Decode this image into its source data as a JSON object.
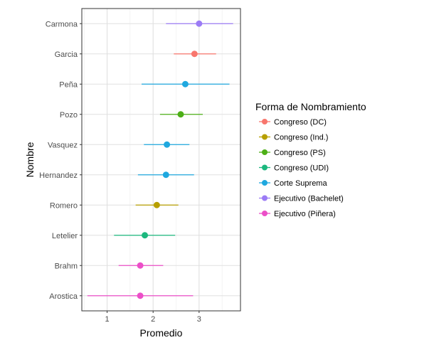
{
  "chart_data": {
    "type": "scatter",
    "title": "",
    "xlabel": "Promedio",
    "ylabel": "Nombre",
    "xlim": [
      0.45,
      3.9
    ],
    "xticks": [
      1,
      2,
      3
    ],
    "grid": true,
    "legend_position": "right",
    "legend_title": "Forma de Nombramiento",
    "legend": [
      {
        "name": "Congreso (DC)",
        "color": "#F8766D"
      },
      {
        "name": "Congreso (Ind.)",
        "color": "#B79F00"
      },
      {
        "name": "Congreso (PS)",
        "color": "#4DAF17"
      },
      {
        "name": "Congreso (UDI)",
        "color": "#1CB87E"
      },
      {
        "name": "Corte Suprema",
        "color": "#1FA8DF"
      },
      {
        "name": "Ejecutivo (Bachelet)",
        "color": "#9B7BF5"
      },
      {
        "name": "Ejecutivo (Piñera)",
        "color": "#EC4FC8"
      }
    ],
    "categories": [
      "Carmona",
      "Garcia",
      "Peña",
      "Pozo",
      "Vasquez",
      "Hernandez",
      "Romero",
      "Letelier",
      "Brahm",
      "Arostica"
    ],
    "points": [
      {
        "name": "Carmona",
        "group": "Ejecutivo (Bachelet)",
        "mean": 3.0,
        "low": 2.28,
        "high": 3.74
      },
      {
        "name": "Garcia",
        "group": "Congreso (DC)",
        "mean": 2.9,
        "low": 2.45,
        "high": 3.37
      },
      {
        "name": "Peña",
        "group": "Corte Suprema",
        "mean": 2.7,
        "low": 1.75,
        "high": 3.66
      },
      {
        "name": "Pozo",
        "group": "Congreso (PS)",
        "mean": 2.6,
        "low": 2.15,
        "high": 3.08
      },
      {
        "name": "Vasquez",
        "group": "Corte Suprema",
        "mean": 2.3,
        "low": 1.8,
        "high": 2.79
      },
      {
        "name": "Hernandez",
        "group": "Corte Suprema",
        "mean": 2.28,
        "low": 1.67,
        "high": 2.89
      },
      {
        "name": "Romero",
        "group": "Congreso (Ind.)",
        "mean": 2.08,
        "low": 1.62,
        "high": 2.55
      },
      {
        "name": "Letelier",
        "group": "Congreso (UDI)",
        "mean": 1.82,
        "low": 1.15,
        "high": 2.48
      },
      {
        "name": "Brahm",
        "group": "Ejecutivo (Piñera)",
        "mean": 1.72,
        "low": 1.25,
        "high": 2.22
      },
      {
        "name": "Arostica",
        "group": "Ejecutivo (Piñera)",
        "mean": 1.72,
        "low": 0.57,
        "high": 2.87
      }
    ]
  }
}
